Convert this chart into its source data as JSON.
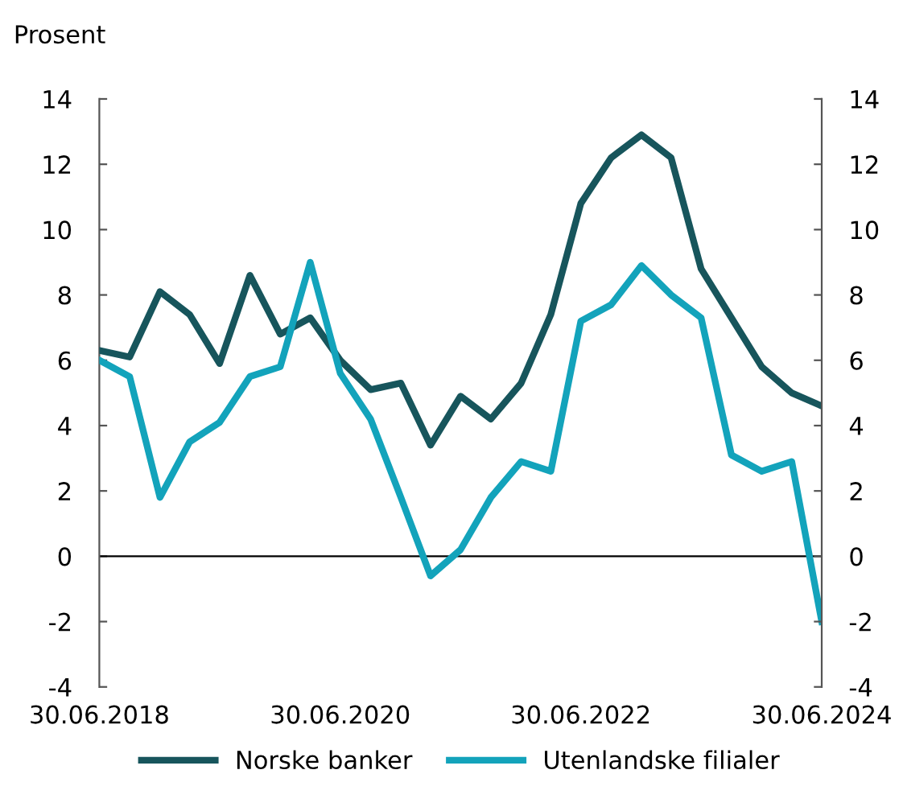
{
  "chart_data": {
    "type": "line",
    "ylabel": "Prosent",
    "x": [
      "2018-06-30",
      "2018-09-30",
      "2018-12-31",
      "2019-03-31",
      "2019-06-30",
      "2019-09-30",
      "2019-12-31",
      "2020-03-31",
      "2020-06-30",
      "2020-09-30",
      "2020-12-31",
      "2021-03-31",
      "2021-06-30",
      "2021-09-30",
      "2021-12-31",
      "2022-03-31",
      "2022-06-30",
      "2022-09-30",
      "2022-12-31",
      "2023-03-31",
      "2023-06-30",
      "2023-09-30",
      "2023-12-31",
      "2024-03-31",
      "2024-06-30"
    ],
    "series": [
      {
        "name": "Norske banker",
        "color": "#17555c",
        "values": [
          6.3,
          6.1,
          8.1,
          7.4,
          5.9,
          8.6,
          6.8,
          7.3,
          6.0,
          5.1,
          5.3,
          3.4,
          4.9,
          4.2,
          5.3,
          7.4,
          10.8,
          12.2,
          12.9,
          12.2,
          8.8,
          7.3,
          5.8,
          5.0,
          4.6
        ]
      },
      {
        "name": "Utenlandske filialer",
        "color": "#13a3bb",
        "values": [
          6.0,
          5.5,
          1.8,
          3.5,
          4.1,
          5.5,
          5.8,
          9.0,
          5.6,
          4.2,
          1.8,
          -0.6,
          0.2,
          1.8,
          2.9,
          2.6,
          7.2,
          7.7,
          8.9,
          8.0,
          7.3,
          3.1,
          2.6,
          2.9,
          -2.0
        ]
      }
    ],
    "xlim": [
      "2018-06-30",
      "2024-06-30"
    ],
    "xticks": [
      {
        "value": "2018-06-30",
        "label": "30.06.2018"
      },
      {
        "value": "2020-06-30",
        "label": "30.06.2020"
      },
      {
        "value": "2022-06-30",
        "label": "30.06.2022"
      },
      {
        "value": "2024-06-30",
        "label": "30.06.2024"
      }
    ],
    "ylim": [
      -4,
      14
    ],
    "yticks": [
      -4,
      -2,
      0,
      2,
      4,
      6,
      8,
      10,
      12,
      14
    ],
    "y2lim": [
      -4,
      14
    ],
    "y2ticks": [
      -4,
      -2,
      0,
      2,
      4,
      6,
      8,
      10,
      12,
      14
    ],
    "ref_lines": [
      {
        "axis": "y",
        "value": 0,
        "color": "#000000"
      }
    ],
    "grid": false,
    "legend": "bottom",
    "marker": "none",
    "line_style": "solid"
  }
}
